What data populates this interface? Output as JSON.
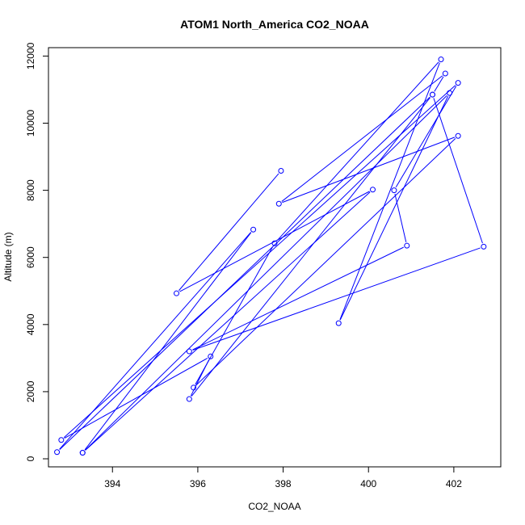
{
  "chart_data": {
    "type": "scatter",
    "title": "ATOM1 North_America CO2_NOAA",
    "xlabel": "CO2_NOAA",
    "ylabel": "Altitude (m)",
    "xlim": [
      392.5,
      403.1
    ],
    "ylim": [
      -240,
      12250
    ],
    "xticks": [
      394,
      396,
      398,
      400,
      402
    ],
    "xtick_labels": [
      "394",
      "396",
      "398",
      "400",
      "402"
    ],
    "yticks": [
      0,
      2000,
      4000,
      6000,
      8000,
      10000,
      12000
    ],
    "ytick_labels": [
      "0",
      "2000",
      "4000",
      "6000",
      "8000",
      "10000",
      "12000"
    ],
    "grid": false,
    "series": [
      {
        "style": "both",
        "color": "#0000ff",
        "x": [
          393.3,
          397.3,
          392.7,
          401.5,
          395.8,
          396.3,
          392.8,
          402.1,
          400.6,
          400.9,
          395.8,
          402.7,
          401.5,
          401.8,
          397.9,
          402.1,
          395.9,
          397.8,
          401.7,
          399.3,
          401.9,
          393.3,
          400.1,
          395.5,
          397.95
        ],
        "y": [
          180,
          6830,
          200,
          10850,
          1780,
          3050,
          560,
          11200,
          8000,
          6350,
          3200,
          6320,
          10850,
          11480,
          7600,
          9620,
          2120,
          6420,
          11900,
          4040,
          10900,
          180,
          8020,
          4930,
          8580
        ]
      }
    ]
  }
}
